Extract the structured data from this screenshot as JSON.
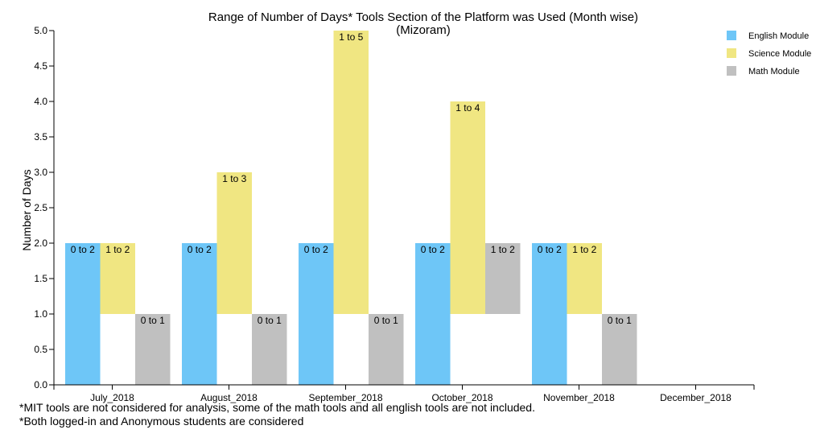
{
  "chart_data": {
    "type": "bar",
    "title": "Range of Number of Days* Tools Section of the Platform was Used (Month wise)",
    "subtitle": "(Mizoram)",
    "ylabel": "Number of Days",
    "xlabel": "",
    "ylim": [
      0,
      5
    ],
    "yticks": [
      "0.0",
      "0.5",
      "1.0",
      "1.5",
      "2.0",
      "2.5",
      "3.0",
      "3.5",
      "4.0",
      "4.5",
      "5.0"
    ],
    "grid": false,
    "legend_position": "top-right",
    "categories": [
      "July_2018",
      "August_2018",
      "September_2018",
      "October_2018",
      "November_2018",
      "December_2018"
    ],
    "series": [
      {
        "name": "English Module",
        "color": "#6ec6f7",
        "bars": [
          {
            "low": 0,
            "high": 2,
            "label": "0 to 2"
          },
          {
            "low": 0,
            "high": 2,
            "label": "0 to 2"
          },
          {
            "low": 0,
            "high": 2,
            "label": "0 to 2"
          },
          {
            "low": 0,
            "high": 2,
            "label": "0 to 2"
          },
          {
            "low": 0,
            "high": 2,
            "label": "0 to 2"
          },
          null
        ]
      },
      {
        "name": "Science Module",
        "color": "#f0e682",
        "bars": [
          {
            "low": 1,
            "high": 2,
            "label": "1 to 2"
          },
          {
            "low": 1,
            "high": 3,
            "label": "1 to 3"
          },
          {
            "low": 1,
            "high": 5,
            "label": "1 to 5"
          },
          {
            "low": 1,
            "high": 4,
            "label": "1 to 4"
          },
          {
            "low": 1,
            "high": 2,
            "label": "1 to 2"
          },
          null
        ]
      },
      {
        "name": "Math Module",
        "color": "#c0c0c0",
        "bars": [
          {
            "low": 0,
            "high": 1,
            "label": "0 to 1"
          },
          {
            "low": 0,
            "high": 1,
            "label": "0 to 1"
          },
          {
            "low": 0,
            "high": 1,
            "label": "0 to 1"
          },
          {
            "low": 1,
            "high": 2,
            "label": "1 to 2"
          },
          {
            "low": 0,
            "high": 1,
            "label": "0 to 1"
          },
          null
        ]
      }
    ]
  },
  "footnotes": [
    "*MIT tools are not considered for analysis, some of the math tools and all english tools are not included.",
    "*Both logged-in and Anonymous students are considered"
  ]
}
